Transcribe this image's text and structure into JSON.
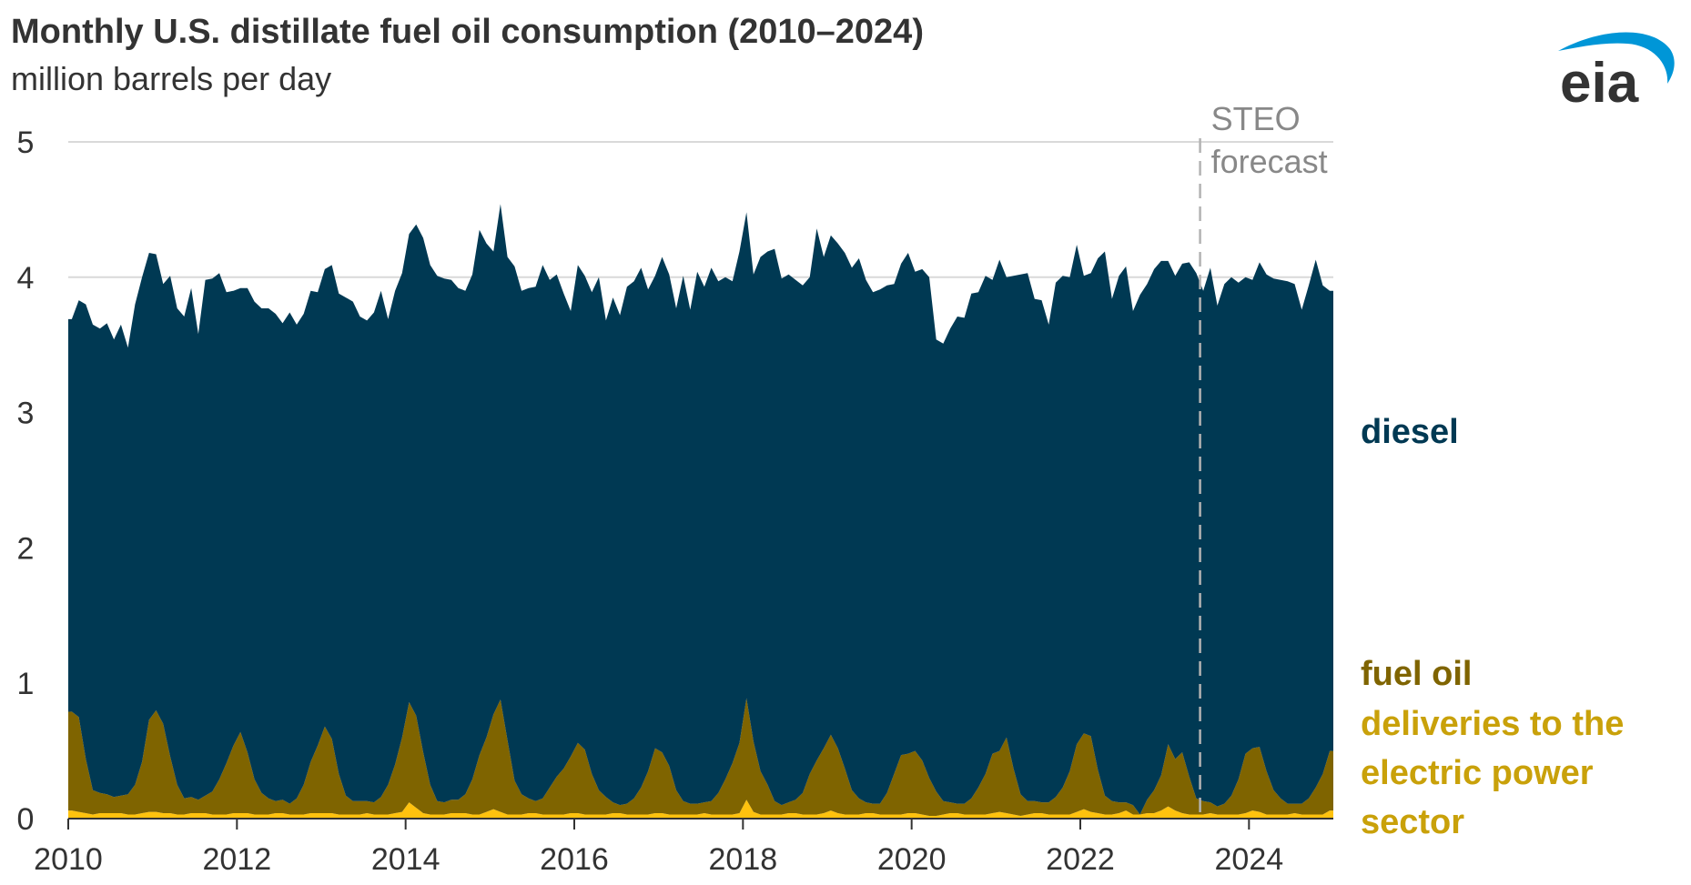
{
  "chart_data": {
    "type": "area",
    "stacked": true,
    "title": "Monthly U.S. distillate fuel oil consumption (2010–2024)",
    "subtitle": "million barrels per day",
    "xlim": [
      2010,
      2025
    ],
    "ylim": [
      0,
      5
    ],
    "y_ticks": [
      "0",
      "1",
      "2",
      "3",
      "4",
      "5"
    ],
    "x_ticks": [
      "2010",
      "2012",
      "2014",
      "2016",
      "2018",
      "2020",
      "2022",
      "2024"
    ],
    "grid": true,
    "forecast_start": 2023.42,
    "forecast_label": [
      "STEO",
      "forecast"
    ],
    "colors": {
      "diesel": "#003953",
      "fuel_oil": "#7f6400",
      "electric": "#ffc20e",
      "fuel_oil_label": "#7f6400",
      "electric_label": "#c9a10a",
      "gridline": "#d9d9d9",
      "forecast_line": "#b3b3b3"
    },
    "series": [
      {
        "name": "electric",
        "label": [
          "deliveries to the",
          "electric power",
          "sector"
        ],
        "values": [
          0.06,
          0.05,
          0.04,
          0.03,
          0.04,
          0.04,
          0.04,
          0.04,
          0.03,
          0.03,
          0.04,
          0.05,
          0.05,
          0.04,
          0.04,
          0.03,
          0.03,
          0.04,
          0.04,
          0.04,
          0.03,
          0.03,
          0.03,
          0.04,
          0.04,
          0.04,
          0.03,
          0.03,
          0.03,
          0.04,
          0.04,
          0.03,
          0.03,
          0.03,
          0.04,
          0.04,
          0.04,
          0.04,
          0.03,
          0.03,
          0.03,
          0.03,
          0.04,
          0.03,
          0.03,
          0.03,
          0.04,
          0.05,
          0.12,
          0.08,
          0.04,
          0.03,
          0.03,
          0.03,
          0.04,
          0.04,
          0.04,
          0.03,
          0.03,
          0.05,
          0.07,
          0.05,
          0.03,
          0.03,
          0.03,
          0.04,
          0.04,
          0.03,
          0.03,
          0.03,
          0.03,
          0.04,
          0.04,
          0.03,
          0.03,
          0.03,
          0.03,
          0.04,
          0.04,
          0.03,
          0.03,
          0.03,
          0.03,
          0.04,
          0.04,
          0.03,
          0.03,
          0.03,
          0.03,
          0.03,
          0.04,
          0.03,
          0.03,
          0.03,
          0.03,
          0.04,
          0.14,
          0.05,
          0.03,
          0.03,
          0.03,
          0.03,
          0.04,
          0.04,
          0.03,
          0.03,
          0.03,
          0.04,
          0.06,
          0.04,
          0.03,
          0.03,
          0.03,
          0.04,
          0.04,
          0.03,
          0.03,
          0.03,
          0.03,
          0.04,
          0.04,
          0.03,
          0.02,
          0.02,
          0.03,
          0.04,
          0.04,
          0.03,
          0.03,
          0.03,
          0.03,
          0.04,
          0.05,
          0.04,
          0.03,
          0.02,
          0.03,
          0.04,
          0.04,
          0.03,
          0.03,
          0.03,
          0.03,
          0.05,
          0.07,
          0.05,
          0.04,
          0.03,
          0.03,
          0.04,
          0.06,
          0.03,
          0.03,
          0.04,
          0.04,
          0.06,
          0.09,
          0.06,
          0.04,
          0.03,
          0.03,
          0.03,
          0.04,
          0.03,
          0.03,
          0.03,
          0.03,
          0.04,
          0.06,
          0.05,
          0.03,
          0.03,
          0.03,
          0.03,
          0.04,
          0.03,
          0.03,
          0.03,
          0.03,
          0.06
        ]
      },
      {
        "name": "fuel oil",
        "label": [
          "fuel oil"
        ],
        "values": [
          0.73,
          0.7,
          0.4,
          0.18,
          0.15,
          0.14,
          0.12,
          0.13,
          0.15,
          0.22,
          0.38,
          0.68,
          0.75,
          0.66,
          0.42,
          0.22,
          0.12,
          0.12,
          0.1,
          0.13,
          0.17,
          0.26,
          0.38,
          0.5,
          0.6,
          0.45,
          0.26,
          0.16,
          0.12,
          0.09,
          0.1,
          0.08,
          0.12,
          0.22,
          0.38,
          0.5,
          0.64,
          0.55,
          0.3,
          0.14,
          0.1,
          0.1,
          0.09,
          0.09,
          0.13,
          0.22,
          0.36,
          0.55,
          0.74,
          0.68,
          0.45,
          0.22,
          0.1,
          0.09,
          0.1,
          0.1,
          0.14,
          0.26,
          0.44,
          0.55,
          0.7,
          0.83,
          0.55,
          0.25,
          0.15,
          0.11,
          0.09,
          0.12,
          0.2,
          0.28,
          0.34,
          0.42,
          0.52,
          0.48,
          0.3,
          0.18,
          0.13,
          0.08,
          0.06,
          0.08,
          0.12,
          0.2,
          0.32,
          0.48,
          0.45,
          0.36,
          0.18,
          0.1,
          0.08,
          0.08,
          0.08,
          0.1,
          0.16,
          0.26,
          0.38,
          0.52,
          0.75,
          0.52,
          0.32,
          0.22,
          0.1,
          0.07,
          0.08,
          0.1,
          0.16,
          0.3,
          0.4,
          0.48,
          0.56,
          0.48,
          0.34,
          0.18,
          0.12,
          0.08,
          0.07,
          0.08,
          0.16,
          0.3,
          0.44,
          0.44,
          0.46,
          0.4,
          0.28,
          0.18,
          0.1,
          0.08,
          0.07,
          0.08,
          0.12,
          0.2,
          0.3,
          0.44,
          0.45,
          0.56,
          0.34,
          0.16,
          0.1,
          0.09,
          0.08,
          0.09,
          0.13,
          0.2,
          0.32,
          0.5,
          0.56,
          0.56,
          0.32,
          0.14,
          0.1,
          0.08,
          0.06,
          0.07,
          0.0,
          0.1,
          0.17,
          0.26,
          0.46,
          0.38,
          0.45,
          0.28,
          0.12,
          0.1,
          0.08,
          0.06,
          0.08,
          0.14,
          0.26,
          0.44,
          0.46,
          0.48,
          0.32,
          0.18,
          0.12,
          0.08,
          0.07,
          0.08,
          0.12,
          0.2,
          0.3,
          0.44
        ]
      },
      {
        "name": "diesel",
        "label": [
          "diesel"
        ],
        "values": [
          2.9,
          3.08,
          3.36,
          3.44,
          3.43,
          3.48,
          3.38,
          3.48,
          3.3,
          3.55,
          3.58,
          3.45,
          3.37,
          3.25,
          3.55,
          3.52,
          3.56,
          3.76,
          3.44,
          3.81,
          3.79,
          3.74,
          3.48,
          3.36,
          3.28,
          3.43,
          3.53,
          3.58,
          3.62,
          3.6,
          3.52,
          3.63,
          3.5,
          3.48,
          3.48,
          3.35,
          3.38,
          3.5,
          3.55,
          3.68,
          3.69,
          3.58,
          3.55,
          3.62,
          3.74,
          3.44,
          3.5,
          3.43,
          3.46,
          3.63,
          3.8,
          3.84,
          3.88,
          3.87,
          3.84,
          3.78,
          3.72,
          3.73,
          3.88,
          3.65,
          3.42,
          3.66,
          3.57,
          3.8,
          3.72,
          3.77,
          3.8,
          3.94,
          3.75,
          3.71,
          3.51,
          3.29,
          3.53,
          3.5,
          3.56,
          3.79,
          3.52,
          3.73,
          3.62,
          3.82,
          3.82,
          3.84,
          3.56,
          3.49,
          3.66,
          3.63,
          3.56,
          3.88,
          3.65,
          3.93,
          3.81,
          3.94,
          3.78,
          3.71,
          3.56,
          3.63,
          3.59,
          3.45,
          3.8,
          3.94,
          4.08,
          3.89,
          3.9,
          3.84,
          3.75,
          3.67,
          3.93,
          3.63,
          3.69,
          3.73,
          3.81,
          3.86,
          3.99,
          3.86,
          3.78,
          3.8,
          3.75,
          3.62,
          3.63,
          3.7,
          3.54,
          3.63,
          3.7,
          3.34,
          3.38,
          3.5,
          3.6,
          3.59,
          3.73,
          3.66,
          3.68,
          3.5,
          3.63,
          3.4,
          3.64,
          3.84,
          3.9,
          3.71,
          3.71,
          3.53,
          3.8,
          3.78,
          3.65,
          3.69,
          3.38,
          3.42,
          3.78,
          4.02,
          3.71,
          3.89,
          3.96,
          3.65,
          3.84,
          3.81,
          3.85,
          3.8,
          3.57,
          3.57,
          3.61,
          3.8,
          3.88,
          3.77,
          3.95,
          3.7,
          3.84,
          3.83,
          3.67,
          3.52,
          3.46,
          3.58,
          3.67,
          3.78,
          3.83,
          3.86,
          3.84,
          3.65,
          3.79,
          3.9,
          3.61,
          3.4
        ]
      }
    ]
  },
  "logo": {
    "text": "eia",
    "color": "#333333",
    "swoosh_color": "#0096d7"
  }
}
